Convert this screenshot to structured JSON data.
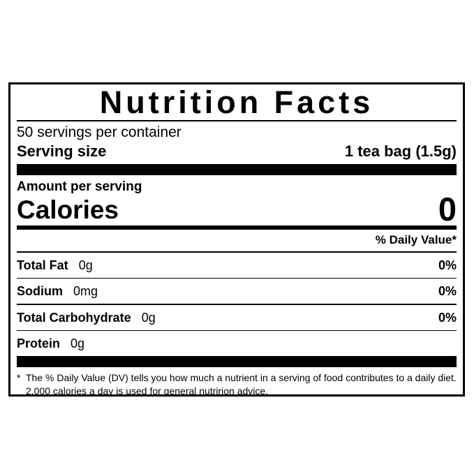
{
  "label": {
    "title": "Nutrition Facts",
    "servings_per_container": "50 servings per container",
    "serving_size": {
      "label": "Serving size",
      "value": "1 tea bag (1.5g)"
    },
    "amount_per_serving": "Amount per serving",
    "calories": {
      "label": "Calories",
      "value": "0"
    },
    "daily_value_header": "% Daily Value*",
    "nutrients": [
      {
        "name": "Total Fat",
        "amount": "0g",
        "dv": "0%"
      },
      {
        "name": "Sodium",
        "amount": "0mg",
        "dv": "0%"
      },
      {
        "name": "Total Carbohydrate",
        "amount": "0g",
        "dv": "0%"
      },
      {
        "name": "Protein",
        "amount": "0g",
        "dv": ""
      }
    ],
    "footnote": {
      "marker": "*",
      "text": "The % Daily Value (DV) tells you how much a nutrient in a serving of food contributes to a daily diet. 2,000 calories a day is used for general nutririon advice."
    },
    "colors": {
      "text": "#000000",
      "background": "#ffffff"
    }
  }
}
